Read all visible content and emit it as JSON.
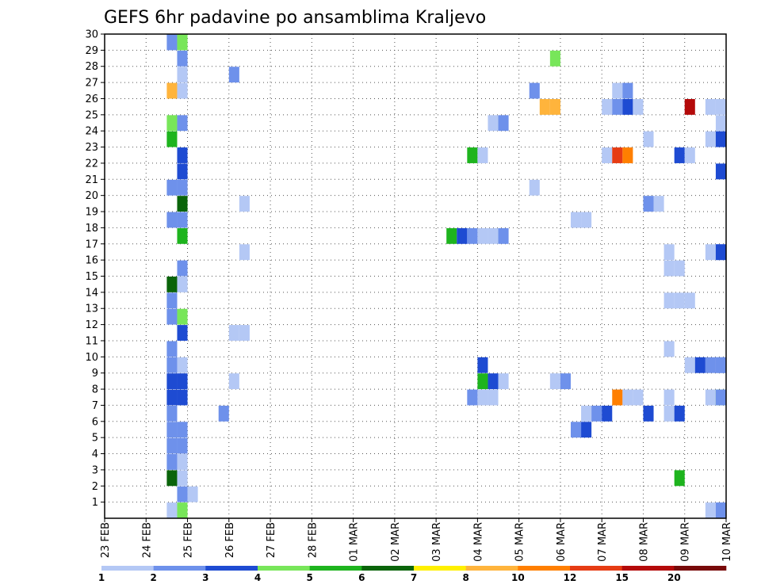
{
  "chart_data": {
    "type": "heatmap",
    "title": "GEFS 6hr padavine po ansamblima Kraljevo",
    "xlabel": "",
    "ylabel": "",
    "x_tick_labels": [
      "23 FEB",
      "24 FEB",
      "25 FEB",
      "26 FEB",
      "27 FEB",
      "28 FEB",
      "01 MAR",
      "02 MAR",
      "03 MAR",
      "04 MAR",
      "05 MAR",
      "06 MAR",
      "07 MAR",
      "08 MAR",
      "09 MAR",
      "10 MAR"
    ],
    "x_range_days": [
      0,
      15
    ],
    "time_step_hours": 6,
    "y_tick_labels": [
      "1",
      "2",
      "3",
      "4",
      "5",
      "6",
      "7",
      "8",
      "9",
      "10",
      "11",
      "12",
      "13",
      "14",
      "15",
      "16",
      "17",
      "18",
      "19",
      "20",
      "21",
      "22",
      "23",
      "24",
      "25",
      "26",
      "27",
      "28",
      "29",
      "30"
    ],
    "y_range": [
      0,
      30
    ],
    "legend": {
      "placement": "bottom",
      "labels": [
        "1",
        "2",
        "3",
        "4",
        "5",
        "6",
        "7",
        "8",
        "10",
        "12",
        "15",
        "20"
      ],
      "colors": [
        "#b4c8f5",
        "#6e91eb",
        "#1e4bd2",
        "#78e65a",
        "#1eb41e",
        "#0a640a",
        "#fff000",
        "#ffb43c",
        "#ff7f00",
        "#e63c14",
        "#b40a0a",
        "#780a0a"
      ]
    },
    "cells": [
      {
        "day": 1.5,
        "member": 0,
        "level": 1
      },
      {
        "day": 1.5,
        "member": 2,
        "level": 6
      },
      {
        "day": 1.5,
        "member": 3,
        "level": 2
      },
      {
        "day": 1.5,
        "member": 4,
        "level": 2
      },
      {
        "day": 1.5,
        "member": 5,
        "level": 2
      },
      {
        "day": 1.5,
        "member": 6,
        "level": 2
      },
      {
        "day": 1.5,
        "member": 7,
        "level": 3
      },
      {
        "day": 1.5,
        "member": 8,
        "level": 3
      },
      {
        "day": 1.5,
        "member": 9,
        "level": 2
      },
      {
        "day": 1.5,
        "member": 10,
        "level": 2
      },
      {
        "day": 1.5,
        "member": 12,
        "level": 2
      },
      {
        "day": 1.5,
        "member": 13,
        "level": 2
      },
      {
        "day": 1.5,
        "member": 14,
        "level": 6
      },
      {
        "day": 1.5,
        "member": 18,
        "level": 2
      },
      {
        "day": 1.5,
        "member": 20,
        "level": 2
      },
      {
        "day": 1.5,
        "member": 23,
        "level": 5
      },
      {
        "day": 1.5,
        "member": 24,
        "level": 4
      },
      {
        "day": 1.5,
        "member": 26,
        "level": 8
      },
      {
        "day": 1.5,
        "member": 29,
        "level": 2
      },
      {
        "day": 1.75,
        "member": 0,
        "level": 4
      },
      {
        "day": 1.75,
        "member": 1,
        "level": 2
      },
      {
        "day": 1.75,
        "member": 2,
        "level": 1
      },
      {
        "day": 1.75,
        "member": 3,
        "level": 1
      },
      {
        "day": 1.75,
        "member": 4,
        "level": 2
      },
      {
        "day": 1.75,
        "member": 5,
        "level": 2
      },
      {
        "day": 1.75,
        "member": 7,
        "level": 3
      },
      {
        "day": 1.75,
        "member": 8,
        "level": 3
      },
      {
        "day": 1.75,
        "member": 9,
        "level": 1
      },
      {
        "day": 1.75,
        "member": 11,
        "level": 3
      },
      {
        "day": 1.75,
        "member": 12,
        "level": 4
      },
      {
        "day": 1.75,
        "member": 14,
        "level": 1
      },
      {
        "day": 1.75,
        "member": 15,
        "level": 2
      },
      {
        "day": 1.75,
        "member": 17,
        "level": 5
      },
      {
        "day": 1.75,
        "member": 18,
        "level": 2
      },
      {
        "day": 1.75,
        "member": 19,
        "level": 6
      },
      {
        "day": 1.75,
        "member": 20,
        "level": 2
      },
      {
        "day": 1.75,
        "member": 21,
        "level": 3
      },
      {
        "day": 1.75,
        "member": 22,
        "level": 3
      },
      {
        "day": 1.75,
        "member": 24,
        "level": 2
      },
      {
        "day": 1.75,
        "member": 26,
        "level": 1
      },
      {
        "day": 1.75,
        "member": 27,
        "level": 1
      },
      {
        "day": 1.75,
        "member": 28,
        "level": 2
      },
      {
        "day": 1.75,
        "member": 29,
        "level": 4
      },
      {
        "day": 2.0,
        "member": 1,
        "level": 1
      },
      {
        "day": 2.75,
        "member": 6,
        "level": 2
      },
      {
        "day": 3.0,
        "member": 8,
        "level": 1
      },
      {
        "day": 3.0,
        "member": 11,
        "level": 1
      },
      {
        "day": 3.0,
        "member": 27,
        "level": 2
      },
      {
        "day": 3.25,
        "member": 11,
        "level": 1
      },
      {
        "day": 3.25,
        "member": 16,
        "level": 1
      },
      {
        "day": 3.25,
        "member": 19,
        "level": 1
      },
      {
        "day": 8.25,
        "member": 17,
        "level": 5
      },
      {
        "day": 8.5,
        "member": 17,
        "level": 3
      },
      {
        "day": 8.75,
        "member": 7,
        "level": 2
      },
      {
        "day": 8.75,
        "member": 17,
        "level": 2
      },
      {
        "day": 8.75,
        "member": 22,
        "level": 5
      },
      {
        "day": 9.0,
        "member": 7,
        "level": 1
      },
      {
        "day": 9.0,
        "member": 8,
        "level": 5
      },
      {
        "day": 9.0,
        "member": 9,
        "level": 3
      },
      {
        "day": 9.0,
        "member": 17,
        "level": 1
      },
      {
        "day": 9.0,
        "member": 22,
        "level": 1
      },
      {
        "day": 9.25,
        "member": 7,
        "level": 1
      },
      {
        "day": 9.25,
        "member": 8,
        "level": 3
      },
      {
        "day": 9.25,
        "member": 17,
        "level": 1
      },
      {
        "day": 9.25,
        "member": 24,
        "level": 1
      },
      {
        "day": 9.5,
        "member": 8,
        "level": 1
      },
      {
        "day": 9.5,
        "member": 17,
        "level": 2
      },
      {
        "day": 9.5,
        "member": 24,
        "level": 2
      },
      {
        "day": 10.25,
        "member": 20,
        "level": 1
      },
      {
        "day": 10.25,
        "member": 26,
        "level": 2
      },
      {
        "day": 10.5,
        "member": 25,
        "level": 8
      },
      {
        "day": 10.75,
        "member": 25,
        "level": 8
      },
      {
        "day": 10.75,
        "member": 8,
        "level": 1
      },
      {
        "day": 10.75,
        "member": 28,
        "level": 4
      },
      {
        "day": 11.0,
        "member": 8,
        "level": 2
      },
      {
        "day": 11.25,
        "member": 5,
        "level": 2
      },
      {
        "day": 11.25,
        "member": 18,
        "level": 1
      },
      {
        "day": 11.5,
        "member": 5,
        "level": 3
      },
      {
        "day": 11.5,
        "member": 6,
        "level": 1
      },
      {
        "day": 11.5,
        "member": 18,
        "level": 1
      },
      {
        "day": 11.75,
        "member": 6,
        "level": 2
      },
      {
        "day": 12.0,
        "member": 6,
        "level": 3
      },
      {
        "day": 12.0,
        "member": 22,
        "level": 1
      },
      {
        "day": 12.0,
        "member": 25,
        "level": 1
      },
      {
        "day": 12.25,
        "member": 7,
        "level": 9
      },
      {
        "day": 12.25,
        "member": 22,
        "level": 10
      },
      {
        "day": 12.25,
        "member": 25,
        "level": 2
      },
      {
        "day": 12.25,
        "member": 26,
        "level": 1
      },
      {
        "day": 12.5,
        "member": 7,
        "level": 1
      },
      {
        "day": 12.5,
        "member": 22,
        "level": 9
      },
      {
        "day": 12.5,
        "member": 25,
        "level": 3
      },
      {
        "day": 12.5,
        "member": 26,
        "level": 2
      },
      {
        "day": 12.75,
        "member": 7,
        "level": 1
      },
      {
        "day": 12.75,
        "member": 25,
        "level": 1
      },
      {
        "day": 13.0,
        "member": 6,
        "level": 3
      },
      {
        "day": 13.0,
        "member": 19,
        "level": 2
      },
      {
        "day": 13.0,
        "member": 23,
        "level": 1
      },
      {
        "day": 13.25,
        "member": 19,
        "level": 1
      },
      {
        "day": 13.5,
        "member": 6,
        "level": 1
      },
      {
        "day": 13.5,
        "member": 7,
        "level": 1
      },
      {
        "day": 13.5,
        "member": 10,
        "level": 1
      },
      {
        "day": 13.5,
        "member": 13,
        "level": 1
      },
      {
        "day": 13.5,
        "member": 15,
        "level": 1
      },
      {
        "day": 13.5,
        "member": 16,
        "level": 1
      },
      {
        "day": 13.75,
        "member": 2,
        "level": 5
      },
      {
        "day": 13.75,
        "member": 6,
        "level": 3
      },
      {
        "day": 13.75,
        "member": 13,
        "level": 1
      },
      {
        "day": 13.75,
        "member": 15,
        "level": 1
      },
      {
        "day": 13.75,
        "member": 22,
        "level": 3
      },
      {
        "day": 14.0,
        "member": 9,
        "level": 1
      },
      {
        "day": 14.0,
        "member": 13,
        "level": 1
      },
      {
        "day": 14.0,
        "member": 22,
        "level": 1
      },
      {
        "day": 14.0,
        "member": 25,
        "level": 11
      },
      {
        "day": 14.25,
        "member": 9,
        "level": 3
      },
      {
        "day": 14.5,
        "member": 0,
        "level": 1
      },
      {
        "day": 14.5,
        "member": 7,
        "level": 1
      },
      {
        "day": 14.5,
        "member": 9,
        "level": 2
      },
      {
        "day": 14.5,
        "member": 16,
        "level": 1
      },
      {
        "day": 14.5,
        "member": 23,
        "level": 1
      },
      {
        "day": 14.5,
        "member": 25,
        "level": 1
      },
      {
        "day": 14.75,
        "member": 0,
        "level": 1
      },
      {
        "day": 14.75,
        "member": 7,
        "level": 5
      },
      {
        "day": 14.75,
        "member": 9,
        "level": 2
      },
      {
        "day": 14.75,
        "member": 16,
        "level": 2
      },
      {
        "day": 14.75,
        "member": 23,
        "level": 2
      },
      {
        "day": 14.95,
        "member": 0,
        "level": 2
      },
      {
        "day": 14.95,
        "member": 7,
        "level": 2
      },
      {
        "day": 14.95,
        "member": 9,
        "level": 2
      },
      {
        "day": 14.95,
        "member": 16,
        "level": 3
      },
      {
        "day": 14.95,
        "member": 21,
        "level": 3
      },
      {
        "day": 14.95,
        "member": 23,
        "level": 3
      },
      {
        "day": 14.95,
        "member": 24,
        "level": 1
      },
      {
        "day": 14.95,
        "member": 25,
        "level": 1
      }
    ]
  }
}
